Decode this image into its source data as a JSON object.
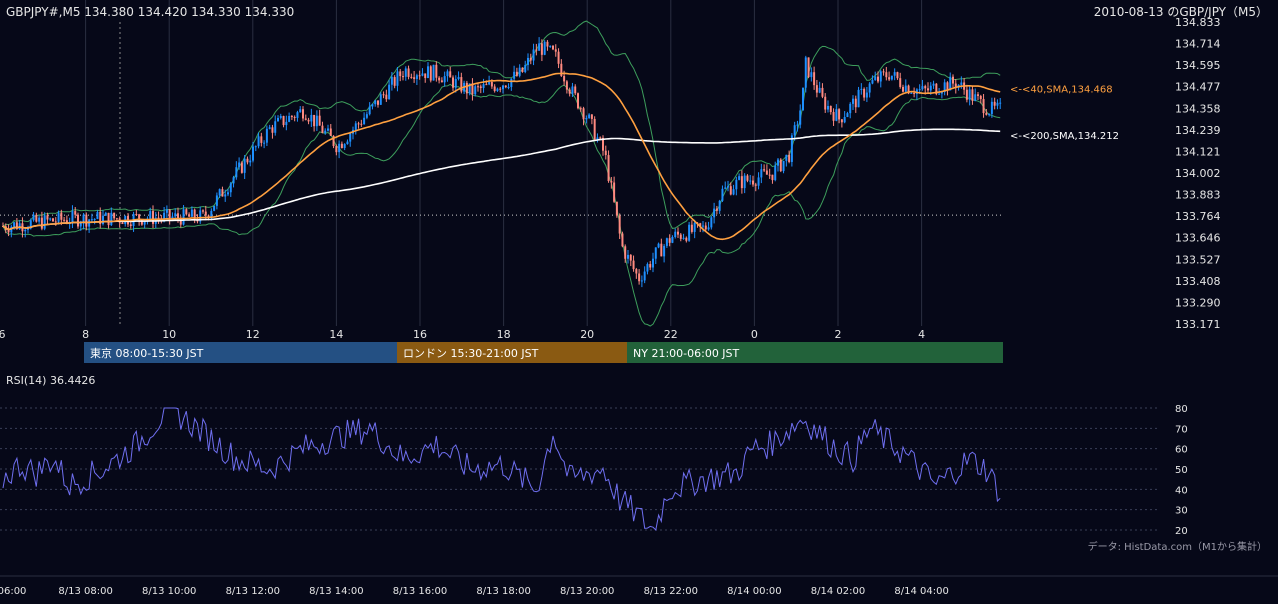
{
  "colors": {
    "background": "#060818",
    "grid_vertical": "#2a2e40",
    "grid_dotted": "#3a3f58",
    "candle_up": "#1e90ff",
    "candle_down": "#ff8a80",
    "bollinger": "#3d9e5c",
    "sma40": "#ffa040",
    "sma200": "#ffffff",
    "rsi": "#6f6ff0",
    "tokyo": "#245083",
    "london": "#8a5a12",
    "ny": "#22623a"
  },
  "header": {
    "symbol_ohlc": "GBPJPY#,M5  134.380 134.420 134.330 134.330",
    "title": "2010-08-13 のGBP/JPY（M5）"
  },
  "chart_data": [
    {
      "type": "candlestick",
      "series_name": "GBPJPY#,M5",
      "ohlc_header": {
        "open": 134.38,
        "high": 134.42,
        "low": 134.33,
        "close": 134.33
      },
      "y_ticks": [
        "134.833",
        "134.714",
        "134.595",
        "134.477",
        "134.358",
        "134.239",
        "134.121",
        "134.002",
        "133.883",
        "133.764",
        "133.646",
        "133.527",
        "133.408",
        "133.290",
        "133.171"
      ],
      "ylim": [
        133.171,
        134.833
      ],
      "x_ticks": [
        "6",
        "8",
        "10",
        "12",
        "14",
        "16",
        "18",
        "20",
        "22",
        "0",
        "2",
        "4"
      ],
      "reference_level": 133.77,
      "overlays": [
        {
          "name": "SMA(40)",
          "label": "<-<40,SMA,134.468",
          "last": 134.468
        },
        {
          "name": "SMA(200)",
          "label": "<-<200,SMA,134.212",
          "last": 134.212
        },
        {
          "name": "Bollinger Bands"
        }
      ],
      "path_keypoints": [
        [
          0,
          133.71
        ],
        [
          2,
          133.75
        ],
        [
          6,
          133.76
        ],
        [
          8,
          134.25
        ],
        [
          9,
          134.35
        ],
        [
          10,
          134.15
        ],
        [
          11,
          134.35
        ],
        [
          12,
          134.57
        ],
        [
          13,
          134.55
        ],
        [
          14,
          134.45
        ],
        [
          15,
          134.5
        ],
        [
          15.5,
          134.55
        ],
        [
          16,
          134.7
        ],
        [
          16.5,
          134.65
        ],
        [
          17,
          134.45
        ],
        [
          17.5,
          134.3
        ],
        [
          18,
          134.1
        ],
        [
          18.5,
          133.6
        ],
        [
          19,
          133.42
        ],
        [
          19.5,
          133.55
        ],
        [
          20,
          133.65
        ],
        [
          21,
          133.7
        ],
        [
          21.5,
          133.9
        ],
        [
          22,
          133.95
        ],
        [
          23,
          134.0
        ],
        [
          23.5,
          134.1
        ],
        [
          23.9,
          134.4
        ],
        [
          24,
          134.6
        ],
        [
          24.5,
          134.4
        ],
        [
          25,
          134.3
        ],
        [
          26,
          134.5
        ],
        [
          26.5,
          134.55
        ],
        [
          27,
          134.48
        ],
        [
          27.5,
          134.45
        ],
        [
          28,
          134.48
        ],
        [
          28.5,
          134.5
        ],
        [
          29,
          134.42
        ],
        [
          29.5,
          134.35
        ]
      ],
      "sessions": [
        {
          "label": "東京 08:00-15:30 JST"
        },
        {
          "label": "ロンドン 15:30-21:00 JST"
        },
        {
          "label": "NY 21:00-06:00 JST"
        }
      ]
    },
    {
      "type": "line",
      "series_name": "RSI(14)",
      "label": "RSI(14) 36.4426",
      "last": 36.4426,
      "y_ticks": [
        "80",
        "70",
        "60",
        "50",
        "40",
        "30",
        "20"
      ],
      "ylim": [
        20,
        80
      ],
      "path_keypoints": [
        [
          0,
          45
        ],
        [
          0.5,
          52
        ],
        [
          1,
          48
        ],
        [
          1.5,
          55
        ],
        [
          2,
          42
        ],
        [
          3,
          50
        ],
        [
          4,
          62
        ],
        [
          5,
          80
        ],
        [
          6,
          68
        ],
        [
          7,
          55
        ],
        [
          8,
          50
        ],
        [
          9,
          60
        ],
        [
          10,
          66
        ],
        [
          11,
          70
        ],
        [
          12,
          55
        ],
        [
          13,
          62
        ],
        [
          14,
          50
        ],
        [
          15,
          52
        ],
        [
          16,
          40
        ],
        [
          16.5,
          68
        ],
        [
          17,
          45
        ],
        [
          18,
          50
        ],
        [
          18.5,
          35
        ],
        [
          19,
          28
        ],
        [
          19.5,
          20
        ],
        [
          20,
          40
        ],
        [
          21,
          45
        ],
        [
          22,
          48
        ],
        [
          22.5,
          60
        ],
        [
          23,
          62
        ],
        [
          24,
          75
        ],
        [
          25,
          60
        ],
        [
          25.5,
          55
        ],
        [
          26,
          70
        ],
        [
          27,
          58
        ],
        [
          28,
          42
        ],
        [
          29,
          55
        ],
        [
          29.5,
          50
        ],
        [
          30,
          36
        ]
      ]
    }
  ],
  "x_time_labels": [
    "06:00",
    "8/13 08:00",
    "8/13 10:00",
    "8/13 12:00",
    "8/13 14:00",
    "8/13 16:00",
    "8/13 18:00",
    "8/13 20:00",
    "8/13 22:00",
    "8/14 00:00",
    "8/14 02:00",
    "8/14 04:00"
  ],
  "footer": {
    "source": "データ: HistData.com（M1から集計）"
  }
}
